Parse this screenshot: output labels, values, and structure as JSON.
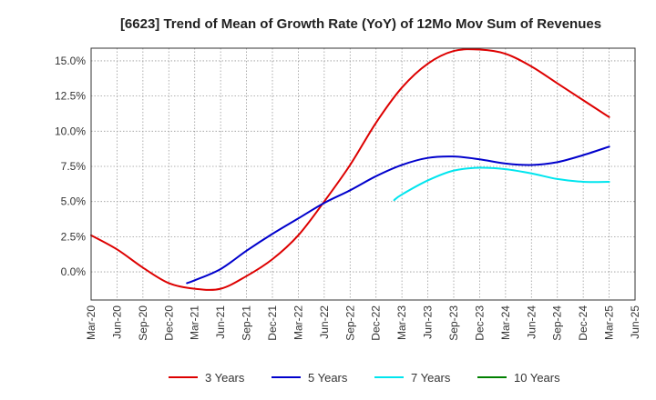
{
  "chart_data": {
    "type": "line",
    "title": "[6623]  Trend of Mean of Growth Rate (YoY) of 12Mo Mov Sum of Revenues",
    "xlabel": "",
    "ylabel": "",
    "x_tick_labels": [
      "Mar-20",
      "Jun-20",
      "Sep-20",
      "Dec-20",
      "Mar-21",
      "Jun-21",
      "Sep-21",
      "Dec-21",
      "Mar-22",
      "Jun-22",
      "Sep-22",
      "Dec-22",
      "Mar-23",
      "Jun-23",
      "Sep-23",
      "Dec-23",
      "Mar-24",
      "Jun-24",
      "Sep-24",
      "Dec-24",
      "Mar-25",
      "Jun-25"
    ],
    "y_tick_labels": [
      "0.0%",
      "2.5%",
      "5.0%",
      "7.5%",
      "10.0%",
      "12.5%",
      "15.0%"
    ],
    "y_ticks": [
      0,
      2.5,
      5,
      7.5,
      10,
      12.5,
      15
    ],
    "ylim": [
      -2.0,
      15.9
    ],
    "grid": true,
    "legend_position": "bottom",
    "series": [
      {
        "name": "3 Years",
        "color": "#dd0000",
        "points": [
          [
            0,
            2.6
          ],
          [
            1,
            1.6
          ],
          [
            2,
            0.3
          ],
          [
            3,
            -0.8
          ],
          [
            4,
            -1.2
          ],
          [
            5,
            -1.2
          ],
          [
            6,
            -0.3
          ],
          [
            7,
            0.9
          ],
          [
            8,
            2.6
          ],
          [
            9,
            5.0
          ],
          [
            10,
            7.6
          ],
          [
            11,
            10.6
          ],
          [
            12,
            13.1
          ],
          [
            13,
            14.8
          ],
          [
            14,
            15.7
          ],
          [
            15,
            15.8
          ],
          [
            16,
            15.5
          ],
          [
            17,
            14.6
          ],
          [
            18,
            13.4
          ],
          [
            19,
            12.2
          ],
          [
            20,
            11.0
          ]
        ]
      },
      {
        "name": "5 Years",
        "color": "#0000cc",
        "points": [
          [
            3.7,
            -0.8
          ],
          [
            4,
            -0.6
          ],
          [
            5,
            0.2
          ],
          [
            6,
            1.5
          ],
          [
            7,
            2.7
          ],
          [
            8,
            3.8
          ],
          [
            9,
            4.9
          ],
          [
            10,
            5.8
          ],
          [
            11,
            6.8
          ],
          [
            12,
            7.6
          ],
          [
            13,
            8.1
          ],
          [
            14,
            8.2
          ],
          [
            15,
            8.0
          ],
          [
            16,
            7.7
          ],
          [
            17,
            7.6
          ],
          [
            18,
            7.8
          ],
          [
            19,
            8.3
          ],
          [
            20,
            8.9
          ]
        ]
      },
      {
        "name": "7 Years",
        "color": "#00e5ee",
        "points": [
          [
            11.7,
            5.1
          ],
          [
            12,
            5.5
          ],
          [
            13,
            6.5
          ],
          [
            14,
            7.2
          ],
          [
            15,
            7.4
          ],
          [
            16,
            7.3
          ],
          [
            17,
            7.0
          ],
          [
            18,
            6.6
          ],
          [
            19,
            6.4
          ],
          [
            20,
            6.4
          ]
        ]
      },
      {
        "name": "10 Years",
        "color": "#008000",
        "points": []
      }
    ]
  }
}
